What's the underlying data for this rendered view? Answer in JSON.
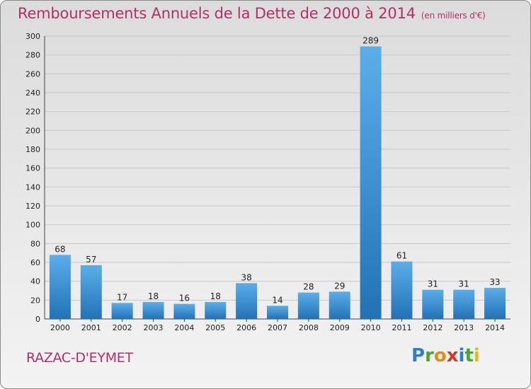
{
  "title": "Remboursements Annuels de la Dette de 2000 à 2014",
  "unit_note": "(en milliers d'€)",
  "location": "RAZAC-D'EYMET",
  "brand": {
    "letters": [
      "P",
      "r",
      "o",
      "x",
      "i",
      "t",
      "i"
    ],
    "colors": [
      "#2e7fc8",
      "#43a82d",
      "#e58a1a",
      "#d13a2b",
      "#2e7fc8",
      "#43a82d",
      "#e5b81a"
    ]
  },
  "colors": {
    "bar_light": "#5aaee9",
    "bar_dark": "#2272b6",
    "title": "#b03068"
  },
  "chart_data": {
    "type": "bar",
    "categories": [
      "2000",
      "2001",
      "2002",
      "2003",
      "2004",
      "2005",
      "2006",
      "2007",
      "2008",
      "2009",
      "2010",
      "2011",
      "2012",
      "2013",
      "2014"
    ],
    "values": [
      68,
      57,
      17,
      18,
      16,
      18,
      38,
      14,
      28,
      29,
      289,
      61,
      31,
      31,
      33
    ],
    "ylim": [
      0,
      300
    ],
    "yticks": [
      0,
      20,
      40,
      60,
      80,
      100,
      120,
      140,
      160,
      180,
      200,
      220,
      240,
      260,
      280,
      300
    ],
    "grid": true
  }
}
